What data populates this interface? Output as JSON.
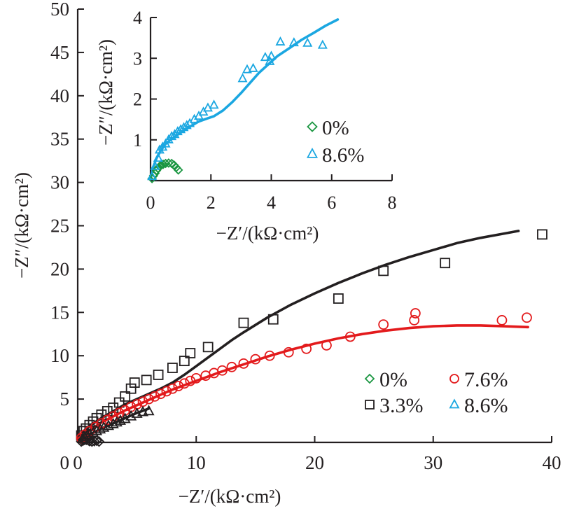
{
  "chart_data": [
    {
      "name": "main",
      "type": "scatter",
      "title": "",
      "xlabel": "−Z′/(kΩ·cm²)",
      "ylabel": "−Z″/(kΩ·cm²)",
      "xlim": [
        0,
        40
      ],
      "ylim": [
        0,
        50
      ],
      "xticks": [
        "0",
        "10",
        "20",
        "30",
        "40"
      ],
      "yticks": [
        "5",
        "10",
        "15",
        "20",
        "25",
        "30",
        "35",
        "40",
        "45",
        "50"
      ],
      "x_tick_values": [
        0,
        10,
        20,
        30,
        40
      ],
      "y_tick_values": [
        5,
        10,
        15,
        20,
        25,
        30,
        35,
        40,
        45,
        50
      ],
      "y_zero_label": "0",
      "grid": false,
      "legend_position": "bottom-right",
      "series": [
        {
          "name": "0%",
          "marker": "diamond",
          "color": "#1a9641",
          "points": [
            [
              0.3,
              0.1
            ],
            [
              0.4,
              0.2
            ],
            [
              0.5,
              0.25
            ],
            [
              0.6,
              0.3
            ],
            [
              0.75,
              0.3
            ],
            [
              0.9,
              0.25
            ],
            [
              1.0,
              0.15
            ],
            [
              1.2,
              0.1
            ],
            [
              1.4,
              0.15
            ],
            [
              1.6,
              0.2
            ],
            [
              1.8,
              0.1
            ]
          ],
          "fit": []
        },
        {
          "name": "3.3%",
          "marker": "square",
          "color": "#231f20",
          "points": [
            [
              0.3,
              0.8
            ],
            [
              0.5,
              1.3
            ],
            [
              0.7,
              1.6
            ],
            [
              1.0,
              2.0
            ],
            [
              1.3,
              2.4
            ],
            [
              1.6,
              2.8
            ],
            [
              2.0,
              3.2
            ],
            [
              2.5,
              3.6
            ],
            [
              3.0,
              4.0
            ],
            [
              3.5,
              4.6
            ],
            [
              4.0,
              5.3
            ],
            [
              4.5,
              6.2
            ],
            [
              4.8,
              6.9
            ],
            [
              5.8,
              7.2
            ],
            [
              6.8,
              7.8
            ],
            [
              8.0,
              8.6
            ],
            [
              9.0,
              9.4
            ],
            [
              9.5,
              10.3
            ],
            [
              11.0,
              11.0
            ],
            [
              14.0,
              13.8
            ],
            [
              16.5,
              14.2
            ],
            [
              22.0,
              16.6
            ],
            [
              25.8,
              19.8
            ],
            [
              31.0,
              20.7
            ],
            [
              39.2,
              24.0
            ]
          ],
          "fit": [
            [
              0.0,
              0.3
            ],
            [
              0.5,
              1.3
            ],
            [
              1.0,
              1.9
            ],
            [
              2.0,
              2.8
            ],
            [
              3.0,
              3.6
            ],
            [
              4.0,
              4.4
            ],
            [
              5.0,
              5.0
            ],
            [
              6.0,
              5.6
            ],
            [
              7.0,
              6.2
            ],
            [
              8.0,
              6.9
            ],
            [
              9.0,
              7.8
            ],
            [
              10.0,
              8.8
            ],
            [
              11.0,
              9.8
            ],
            [
              12.0,
              10.8
            ],
            [
              13.0,
              11.8
            ],
            [
              14.0,
              12.7
            ],
            [
              16.0,
              14.4
            ],
            [
              18.0,
              15.9
            ],
            [
              20.0,
              17.2
            ],
            [
              22.0,
              18.4
            ],
            [
              24.0,
              19.5
            ],
            [
              26.0,
              20.5
            ],
            [
              28.0,
              21.4
            ],
            [
              30.0,
              22.2
            ],
            [
              32.0,
              23.0
            ],
            [
              34.0,
              23.6
            ],
            [
              36.0,
              24.1
            ],
            [
              37.2,
              24.4
            ]
          ]
        },
        {
          "name": "7.6%",
          "marker": "circle",
          "color": "#e31a1c",
          "points": [
            [
              0.3,
              0.5
            ],
            [
              0.6,
              0.9
            ],
            [
              1.0,
              1.3
            ],
            [
              1.5,
              1.8
            ],
            [
              2.0,
              2.2
            ],
            [
              2.5,
              2.6
            ],
            [
              3.0,
              3.0
            ],
            [
              3.5,
              3.4
            ],
            [
              4.0,
              3.7
            ],
            [
              4.5,
              4.1
            ],
            [
              5.0,
              4.4
            ],
            [
              5.5,
              4.7
            ],
            [
              6.0,
              5.0
            ],
            [
              6.5,
              5.3
            ],
            [
              7.0,
              5.6
            ],
            [
              7.5,
              5.9
            ],
            [
              8.0,
              6.2
            ],
            [
              8.5,
              6.5
            ],
            [
              9.0,
              6.8
            ],
            [
              9.5,
              7.1
            ],
            [
              10.0,
              7.4
            ],
            [
              10.8,
              7.7
            ],
            [
              11.5,
              8.0
            ],
            [
              12.2,
              8.3
            ],
            [
              13.0,
              8.7
            ],
            [
              14.0,
              9.1
            ],
            [
              15.0,
              9.6
            ],
            [
              16.2,
              10.0
            ],
            [
              17.8,
              10.4
            ],
            [
              19.3,
              10.8
            ],
            [
              21.0,
              11.2
            ],
            [
              23.0,
              12.2
            ],
            [
              25.8,
              13.6
            ],
            [
              28.4,
              14.1
            ],
            [
              28.5,
              14.9
            ],
            [
              35.8,
              14.1
            ],
            [
              37.9,
              14.4
            ]
          ],
          "fit": [
            [
              0.0,
              0.4
            ],
            [
              1.0,
              1.4
            ],
            [
              2.0,
              2.3
            ],
            [
              3.0,
              3.0
            ],
            [
              4.0,
              3.7
            ],
            [
              5.0,
              4.3
            ],
            [
              6.0,
              4.9
            ],
            [
              7.0,
              5.5
            ],
            [
              8.0,
              6.1
            ],
            [
              9.0,
              6.6
            ],
            [
              10.0,
              7.1
            ],
            [
              11.0,
              7.6
            ],
            [
              12.0,
              8.1
            ],
            [
              14.0,
              9.0
            ],
            [
              16.0,
              9.9
            ],
            [
              18.0,
              10.7
            ],
            [
              20.0,
              11.4
            ],
            [
              22.0,
              12.0
            ],
            [
              24.0,
              12.5
            ],
            [
              26.0,
              12.9
            ],
            [
              28.0,
              13.2
            ],
            [
              30.0,
              13.4
            ],
            [
              32.0,
              13.5
            ],
            [
              34.0,
              13.5
            ],
            [
              36.0,
              13.4
            ],
            [
              38.0,
              13.3
            ]
          ]
        },
        {
          "name": "8.6%",
          "marker": "triangle",
          "color": "#1ba7e1",
          "points": [
            [
              0.4,
              0.4
            ],
            [
              0.6,
              0.6
            ],
            [
              0.8,
              0.8
            ],
            [
              1.0,
              0.9
            ],
            [
              1.3,
              1.1
            ],
            [
              1.6,
              1.3
            ],
            [
              1.9,
              1.5
            ],
            [
              2.2,
              1.7
            ],
            [
              2.6,
              1.9
            ],
            [
              3.0,
              2.1
            ],
            [
              3.3,
              2.3
            ],
            [
              3.6,
              2.5
            ],
            [
              4.0,
              2.7
            ],
            [
              4.5,
              3.0
            ],
            [
              5.0,
              3.3
            ],
            [
              5.5,
              3.5
            ],
            [
              6.0,
              3.6
            ]
          ],
          "fit": [
            [
              0.3,
              0.1
            ],
            [
              1.0,
              0.9
            ],
            [
              2.0,
              1.6
            ],
            [
              3.0,
              2.2
            ],
            [
              4.0,
              2.8
            ],
            [
              5.0,
              3.4
            ],
            [
              6.0,
              3.9
            ]
          ],
          "fit_color": "#231f20"
        }
      ]
    },
    {
      "name": "inset",
      "type": "scatter",
      "title": "",
      "xlabel": "−Z′/(kΩ·cm²)",
      "ylabel": "−Z″/(kΩ·cm²)",
      "xlim": [
        0,
        8
      ],
      "ylim": [
        0,
        4
      ],
      "xticks": [
        "0",
        "2",
        "4",
        "6",
        "8"
      ],
      "yticks": [
        "1",
        "2",
        "3",
        "4"
      ],
      "x_tick_values": [
        0,
        2,
        4,
        6,
        8
      ],
      "y_tick_values": [
        1,
        2,
        3,
        4
      ],
      "grid": false,
      "legend_position": "center-right",
      "series": [
        {
          "name": "0%",
          "marker": "diamond",
          "color": "#1a9641",
          "points": [
            [
              0.05,
              0.05
            ],
            [
              0.1,
              0.12
            ],
            [
              0.15,
              0.18
            ],
            [
              0.2,
              0.25
            ],
            [
              0.25,
              0.3
            ],
            [
              0.3,
              0.35
            ],
            [
              0.35,
              0.38
            ],
            [
              0.42,
              0.4
            ],
            [
              0.5,
              0.42
            ],
            [
              0.6,
              0.43
            ],
            [
              0.7,
              0.42
            ],
            [
              0.78,
              0.38
            ],
            [
              0.85,
              0.32
            ],
            [
              0.92,
              0.26
            ]
          ],
          "fit": []
        },
        {
          "name": "8.6%",
          "marker": "triangle",
          "color": "#1ba7e1",
          "points": [
            [
              0.05,
              0.1
            ],
            [
              0.15,
              0.35
            ],
            [
              0.25,
              0.55
            ],
            [
              0.3,
              0.75
            ],
            [
              0.4,
              0.82
            ],
            [
              0.5,
              0.9
            ],
            [
              0.6,
              1.0
            ],
            [
              0.7,
              1.08
            ],
            [
              0.8,
              1.13
            ],
            [
              0.9,
              1.2
            ],
            [
              1.0,
              1.25
            ],
            [
              1.1,
              1.3
            ],
            [
              1.2,
              1.35
            ],
            [
              1.3,
              1.4
            ],
            [
              1.45,
              1.5
            ],
            [
              1.6,
              1.58
            ],
            [
              1.75,
              1.68
            ],
            [
              1.9,
              1.78
            ],
            [
              2.1,
              1.85
            ],
            [
              3.05,
              2.5
            ],
            [
              3.2,
              2.72
            ],
            [
              3.4,
              2.75
            ],
            [
              3.8,
              3.02
            ],
            [
              4.0,
              3.05
            ],
            [
              3.95,
              2.92
            ],
            [
              4.3,
              3.4
            ],
            [
              4.75,
              3.38
            ],
            [
              5.2,
              3.37
            ],
            [
              5.7,
              3.32
            ]
          ],
          "fit": [
            [
              0.0,
              0.05
            ],
            [
              0.1,
              0.35
            ],
            [
              0.2,
              0.55
            ],
            [
              0.35,
              0.75
            ],
            [
              0.5,
              0.9
            ],
            [
              0.75,
              1.05
            ],
            [
              1.0,
              1.18
            ],
            [
              1.3,
              1.32
            ],
            [
              1.6,
              1.45
            ],
            [
              1.9,
              1.53
            ],
            [
              2.1,
              1.58
            ],
            [
              2.4,
              1.72
            ],
            [
              2.7,
              1.92
            ],
            [
              3.0,
              2.15
            ],
            [
              3.3,
              2.4
            ],
            [
              3.6,
              2.65
            ],
            [
              3.9,
              2.85
            ],
            [
              4.2,
              3.05
            ],
            [
              4.6,
              3.25
            ],
            [
              5.0,
              3.45
            ],
            [
              5.4,
              3.62
            ],
            [
              5.8,
              3.8
            ],
            [
              6.2,
              3.95
            ]
          ]
        }
      ]
    }
  ]
}
